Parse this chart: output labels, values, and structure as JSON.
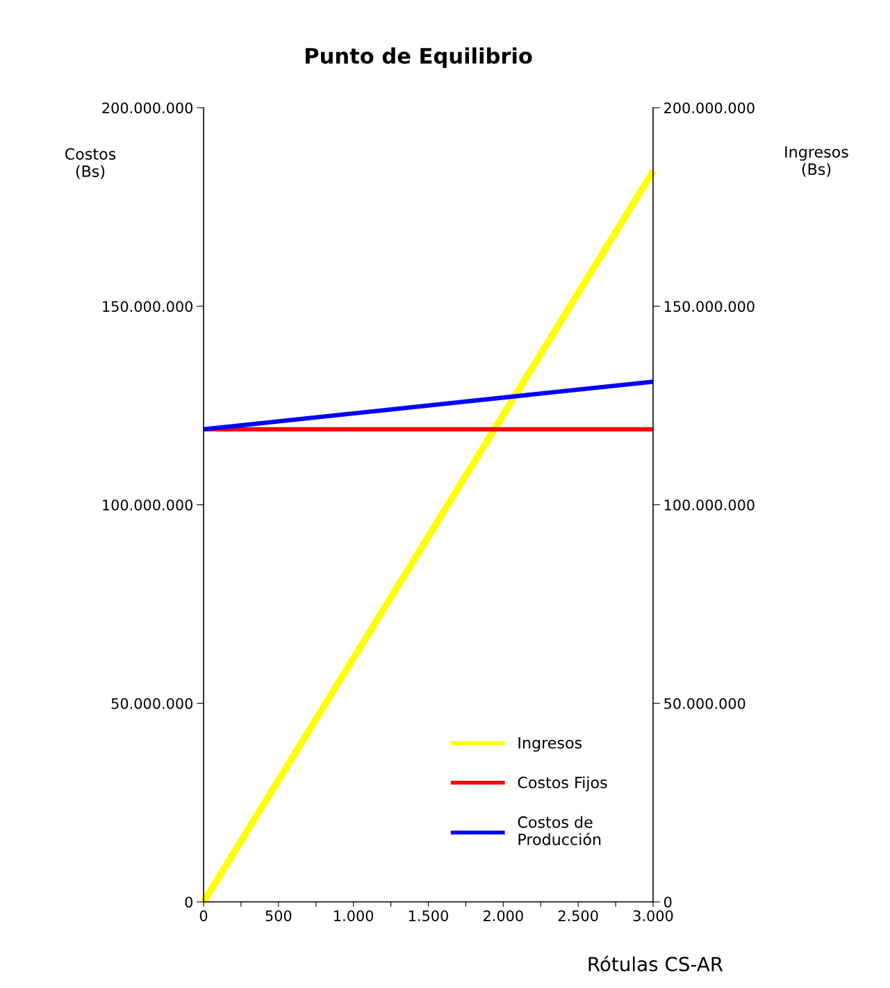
{
  "chart_data": {
    "type": "line",
    "title": "Punto de Equilibrio",
    "ylabel": "Costos\n(Bs)",
    "y2label": "Ingresos\n(Bs)",
    "xlabel": "Rótulas CS-AR",
    "xlim": [
      0,
      3000
    ],
    "xticks": [
      0,
      {
        "value": 250,
        "label": null
      },
      {
        "value": 500,
        "label": "500"
      },
      {
        "value": 750,
        "label": null
      },
      {
        "value": 1000,
        "label": "1.000"
      },
      {
        "value": 1250,
        "label": null
      },
      {
        "value": 1500,
        "label": "1.500"
      },
      {
        "value": 1750,
        "label": null
      },
      {
        "value": 2000,
        "label": "2.000"
      },
      {
        "value": 2250,
        "label": null
      },
      {
        "value": 2500,
        "label": "2.500"
      },
      {
        "value": 2750,
        "label": null
      },
      {
        "value": 3000,
        "label": "3.000"
      }
    ],
    "ylim": [
      0,
      200000000
    ],
    "yticks": [
      0,
      {
        "value": 50000000,
        "label": "50.000.000"
      },
      {
        "value": 100000000,
        "label": "100.000.000"
      },
      {
        "value": 150000000,
        "label": "150.000.000"
      },
      {
        "value": 200000000,
        "label": "200.000.000"
      }
    ],
    "y2lim": [
      0,
      200000000
    ],
    "y2ticks": [
      0,
      {
        "value": 50000000,
        "label": "50.000.000"
      },
      {
        "value": 100000000,
        "label": "100.000.000"
      },
      {
        "value": 150000000,
        "label": "150.000.000"
      },
      {
        "value": 200000000,
        "label": "200.000.000"
      }
    ],
    "x": [
      0,
      3000
    ],
    "series": [
      {
        "name": "Ingresos",
        "color": "#ffff00",
        "values": [
          0,
          184000000
        ],
        "axis": "y2"
      },
      {
        "name": "Costos Fijos",
        "color": "#ff0000",
        "values": [
          119000000,
          119000000
        ]
      },
      {
        "name": "Costos de\nProducción",
        "color": "#0000ff",
        "values": [
          119000000,
          131000000
        ]
      }
    ],
    "legend": "bottom right",
    "grid": false,
    "marker": "none",
    "line_style": "solid"
  }
}
